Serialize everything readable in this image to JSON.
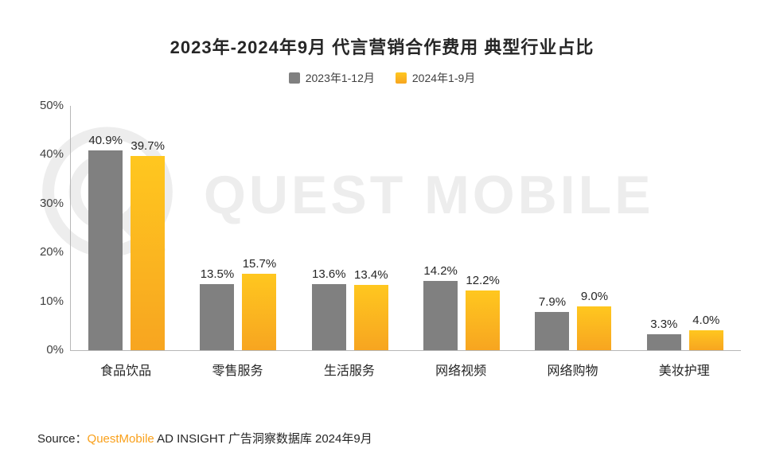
{
  "page": {
    "watermark": "QUEST MOBILE",
    "source_prefix": "Source：",
    "source_brand": "QuestMobile",
    "source_suffix": " AD INSIGHT 广告洞察数据库 2024年9月"
  },
  "colors": {
    "series_gray": "#808080",
    "series_yellow": "#fbb216",
    "brand_orange": "#f9a01b",
    "axis_line": "#b7b7b7",
    "watermark_gray": "#ededed"
  },
  "chart_data": {
    "type": "bar",
    "title": "2023年-2024年9月 代言营销合作费用 典型行业占比",
    "categories": [
      "食品饮品",
      "零售服务",
      "生活服务",
      "网络视频",
      "网络购物",
      "美妆护理"
    ],
    "series": [
      {
        "name": "2023年1-12月",
        "color": "#808080",
        "values": [
          40.9,
          13.5,
          13.6,
          14.2,
          7.9,
          3.3
        ]
      },
      {
        "name": "2024年1-9月",
        "color": "#fbb216",
        "gradient": [
          "#ffc71f",
          "#f7a520"
        ],
        "values": [
          39.7,
          15.7,
          13.4,
          12.2,
          9.0,
          4.0
        ]
      }
    ],
    "ylim": [
      0,
      50
    ],
    "yticks": [
      "0%",
      "10%",
      "20%",
      "30%",
      "40%",
      "50%"
    ],
    "value_suffix": "%",
    "legend_position": "top",
    "grid": false
  }
}
